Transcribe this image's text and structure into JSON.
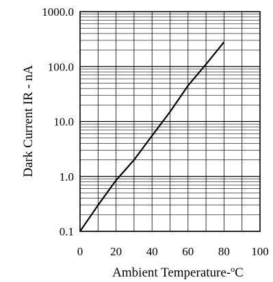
{
  "chart_data": {
    "type": "line",
    "title": "",
    "xlabel": "Ambient Temperature-",
    "xlabel_unit_sup": "o",
    "xlabel_unit": "C",
    "ylabel": "Dark  Current  IR - nA",
    "xlim": [
      0,
      100
    ],
    "ylim": [
      0.1,
      1000
    ],
    "yscale": "log",
    "grid": true,
    "x_ticks": [
      {
        "value": 0,
        "label": "0"
      },
      {
        "value": 20,
        "label": "20"
      },
      {
        "value": 40,
        "label": "40"
      },
      {
        "value": 60,
        "label": "60"
      },
      {
        "value": 80,
        "label": "80"
      },
      {
        "value": 100,
        "label": "100"
      }
    ],
    "y_ticks": [
      {
        "value": 0.1,
        "label": "0.1"
      },
      {
        "value": 1,
        "label": "1.0"
      },
      {
        "value": 10,
        "label": "10.0"
      },
      {
        "value": 100,
        "label": "100.0"
      },
      {
        "value": 1000,
        "label": "1000.0"
      }
    ],
    "series": [
      {
        "x": [
          0,
          10,
          20,
          30,
          40,
          50,
          60,
          70,
          80
        ],
        "y": [
          0.1,
          0.3,
          0.85,
          2.0,
          5.5,
          15,
          45,
          110,
          280
        ]
      }
    ]
  }
}
